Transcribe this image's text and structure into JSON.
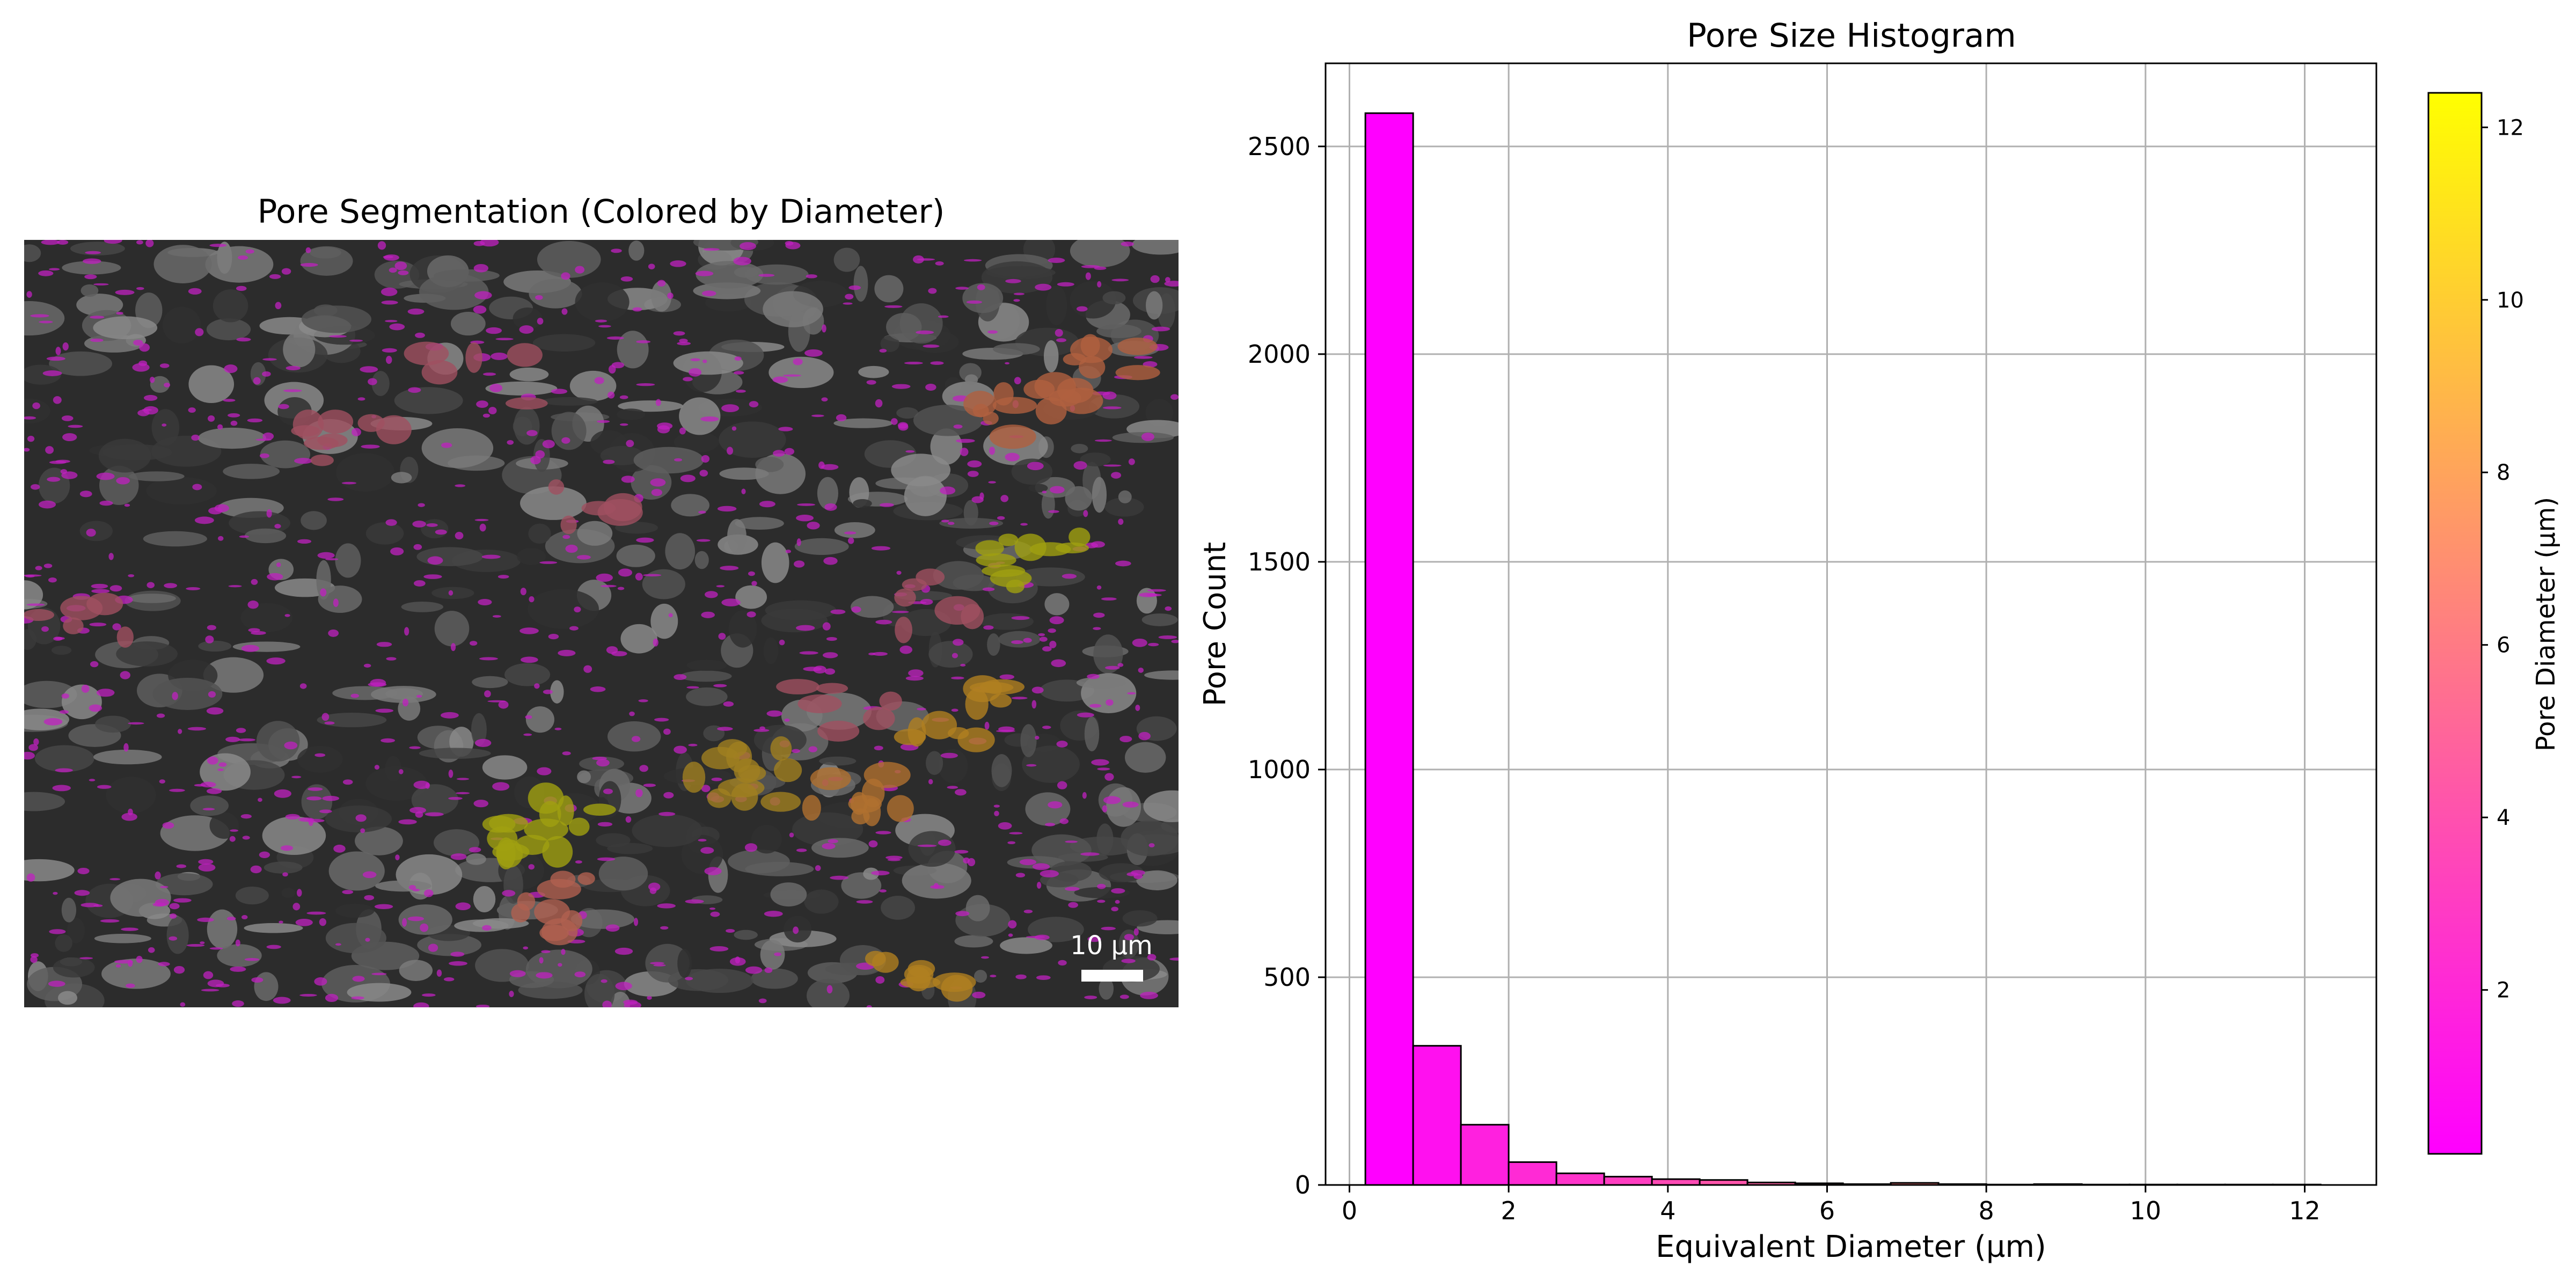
{
  "panel_left": {
    "title": "Pore Segmentation (Colored by Diameter)",
    "scalebar_label": "10 µm"
  },
  "colorbar": {
    "label": "Pore Diameter (µm)",
    "ticks": [
      2,
      4,
      6,
      8,
      10,
      12
    ],
    "range": [
      0.1,
      12.4
    ],
    "colors": [
      "#ff00ff",
      "#ffff00"
    ],
    "colormap": "spring"
  },
  "chart_data": {
    "type": "bar",
    "title": "Pore Size Histogram",
    "xlabel": "Equivalent Diameter (µm)",
    "ylabel": "Pore Count",
    "xlim": [
      -0.3,
      12.9
    ],
    "ylim": [
      0,
      2700
    ],
    "xticks": [
      0,
      2,
      4,
      6,
      8,
      10,
      12
    ],
    "yticks": [
      0,
      500,
      1000,
      1500,
      2000,
      2500
    ],
    "grid": true,
    "bin_edges": [
      0.2,
      0.8,
      1.4,
      2.0,
      2.6,
      3.2,
      3.8,
      4.4,
      5.0,
      5.6,
      6.2,
      6.8,
      7.4,
      8.0,
      8.6,
      9.2,
      9.8,
      10.4,
      11.0,
      11.6,
      12.2
    ],
    "values": [
      2580,
      335,
      145,
      55,
      28,
      20,
      14,
      12,
      6,
      4,
      2,
      5,
      2,
      1,
      2,
      1,
      1,
      1,
      1,
      1
    ],
    "bar_colors": [
      "#ff00ff",
      "#ff10ef",
      "#ff20df",
      "#ff2ad5",
      "#ff34cb",
      "#ff3ec1",
      "#ff4ab5",
      "#ff54ab",
      "#ff5ea1",
      "#ff6a95",
      "#ff748b",
      "#ff7e81",
      "#ff8a75",
      "#ff946b",
      "#ff9e61",
      "#ffa955",
      "#ffb34b",
      "#ffbe41",
      "#ffc935",
      "#ffd42b"
    ]
  }
}
